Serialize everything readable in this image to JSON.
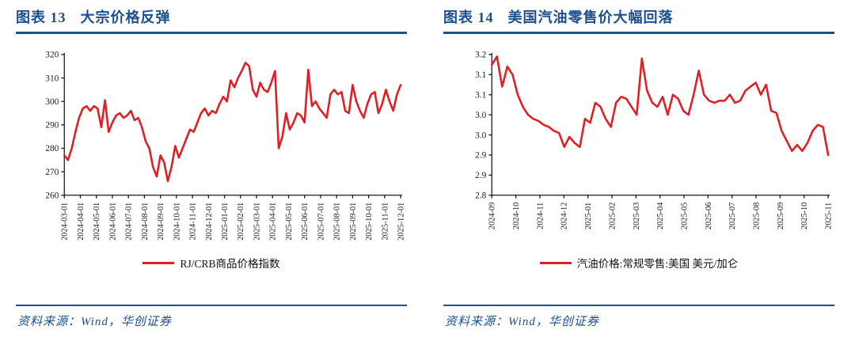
{
  "theme": {
    "accent_navy": "#1B4F8F",
    "line_red": "#E01E25",
    "axis_color": "#1a1a1a"
  },
  "panels": [
    {
      "title_label": "图表 13",
      "title_text": "大宗价格反弹",
      "source": "资料来源：Wind，华创证券"
    },
    {
      "title_label": "图表 14",
      "title_text": "美国汽油零售价大幅回落",
      "source": "资料来源：Wind，华创证券"
    }
  ],
  "chart_data": [
    {
      "type": "line",
      "title": "大宗价格反弹",
      "series_name": "RJ/CRB商品价格指数",
      "legend_position": "bottom",
      "grid": false,
      "ylim": [
        260,
        320
      ],
      "y_tick_values": [
        260,
        270,
        280,
        290,
        300,
        310,
        320
      ],
      "y_tick_labels": [
        "260",
        "270",
        "280",
        "290",
        "300",
        "310",
        "320"
      ],
      "x_tick_labels": [
        "2024-03-01",
        "2024-04-01",
        "2024-05-01",
        "2024-06-01",
        "2024-07-01",
        "2024-08-01",
        "2024-09-01",
        "2024-10-01",
        "2024-11-01",
        "2024-12-01",
        "2025-01-01",
        "2025-02-01",
        "2025-03-01",
        "2025-04-01",
        "2025-05-01",
        "2025-06-01",
        "2025-07-01",
        "2025-08-01",
        "2025-09-01",
        "2025-10-01",
        "2025-11-01",
        "2025-12-01"
      ],
      "x_sampling": "weekly from 2024-03-01 to 2025-12-01",
      "values": [
        277,
        275,
        280,
        287,
        293,
        297,
        298,
        296,
        298,
        297,
        289,
        300.5,
        287,
        291,
        294,
        295,
        293,
        294,
        296,
        292,
        293,
        289,
        283,
        280,
        272,
        268,
        277,
        274,
        266,
        272,
        281,
        276,
        280,
        284,
        288,
        287,
        291,
        295,
        297,
        294,
        296,
        295,
        299,
        302,
        300,
        309,
        306,
        310,
        313,
        316.5,
        315,
        305,
        302,
        308,
        305,
        304,
        308,
        313,
        280,
        285,
        295,
        288,
        291,
        295,
        294,
        291,
        313.5,
        298,
        300,
        297,
        295,
        293,
        303,
        305,
        303,
        304,
        296,
        295,
        307,
        300,
        296,
        293,
        299,
        303,
        304,
        295,
        299,
        305,
        300,
        296,
        303,
        307
      ]
    },
    {
      "type": "line",
      "title": "美国汽油零售价大幅回落",
      "series_name": "汽油价格:常规零售:美国 美元/加仑",
      "legend_position": "bottom",
      "grid": false,
      "ylim": [
        2.8,
        3.15
      ],
      "y_tick_values": [
        2.8,
        2.85,
        2.9,
        2.95,
        3.0,
        3.05,
        3.1,
        3.15
      ],
      "y_tick_labels": [
        "2.8",
        "2.9",
        "2.9",
        "3.0",
        "3.0",
        "3.1",
        "3.1",
        "3.2"
      ],
      "x_tick_labels": [
        "2024-09",
        "2024-10",
        "2024-11",
        "2024-12",
        "2025-01",
        "2025-02",
        "2025-03",
        "2025-04",
        "2025-05",
        "2025-06",
        "2025-07",
        "2025-08",
        "2025-09",
        "2025-10",
        "2025-11"
      ],
      "x_sampling": "weekly from 2024-09 to 2025-11",
      "values": [
        3.125,
        3.145,
        3.07,
        3.12,
        3.1,
        3.05,
        3.02,
        3.0,
        2.99,
        2.985,
        2.975,
        2.97,
        2.96,
        2.955,
        2.92,
        2.945,
        2.93,
        2.92,
        2.99,
        2.98,
        3.03,
        3.02,
        2.99,
        2.97,
        3.03,
        3.045,
        3.04,
        3.02,
        3.0,
        3.14,
        3.06,
        3.03,
        3.02,
        3.045,
        3.0,
        3.05,
        3.04,
        3.01,
        3.0,
        3.05,
        3.11,
        3.05,
        3.035,
        3.03,
        3.035,
        3.035,
        3.05,
        3.03,
        3.035,
        3.06,
        3.07,
        3.08,
        3.05,
        3.075,
        3.01,
        3.005,
        2.96,
        2.935,
        2.91,
        2.925,
        2.91,
        2.93,
        2.96,
        2.975,
        2.97,
        2.9
      ]
    }
  ]
}
